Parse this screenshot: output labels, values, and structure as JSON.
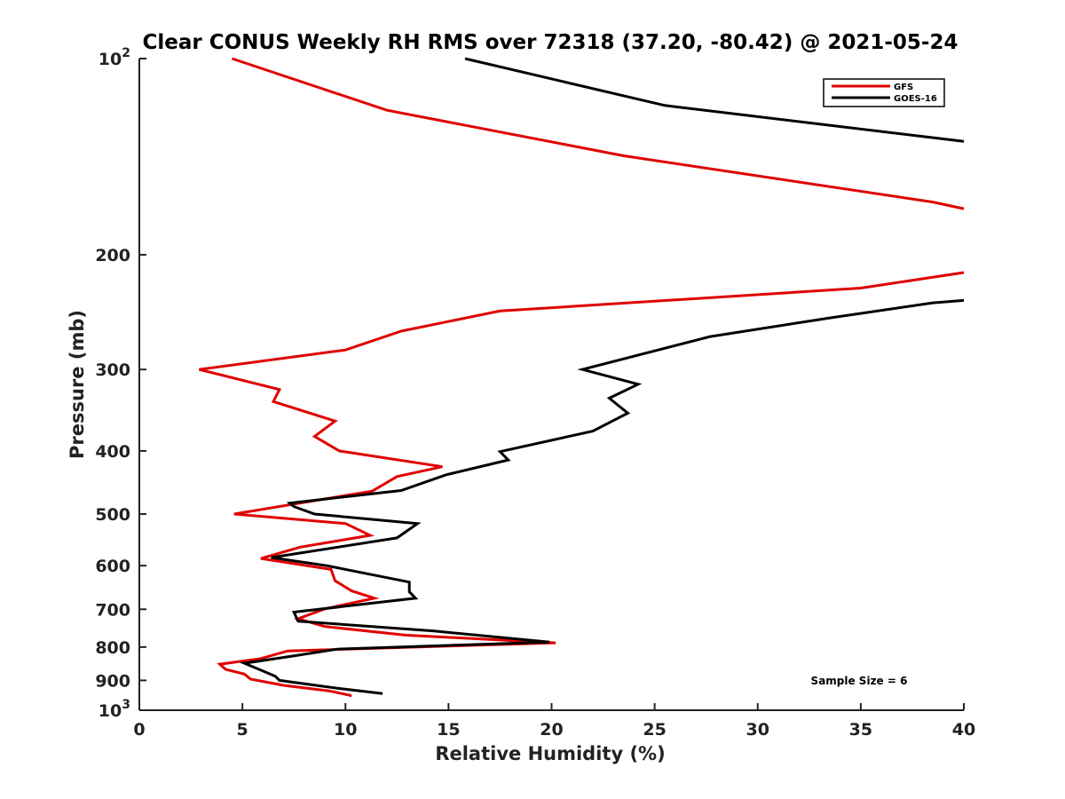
{
  "chart_data": {
    "type": "line",
    "title": "Clear CONUS Weekly RH RMS over 72318 (37.20, -80.42) @ 2021-05-24",
    "xlabel": "Relative Humidity (%)",
    "ylabel": "Pressure (mb)",
    "xlim": [
      0,
      40
    ],
    "ylim": [
      100,
      1000
    ],
    "yscale": "log",
    "y_reversed": true,
    "x_ticks": [
      "0",
      "5",
      "10",
      "15",
      "20",
      "25",
      "30",
      "35",
      "40"
    ],
    "y_ticks": [
      {
        "value": 100,
        "label": "10",
        "sup": "2"
      },
      {
        "value": 200,
        "label": "200"
      },
      {
        "value": 300,
        "label": "300"
      },
      {
        "value": 400,
        "label": "400"
      },
      {
        "value": 500,
        "label": "500"
      },
      {
        "value": 600,
        "label": "600"
      },
      {
        "value": 700,
        "label": "700"
      },
      {
        "value": 800,
        "label": "800"
      },
      {
        "value": 900,
        "label": "900"
      },
      {
        "value": 1000,
        "label": "10",
        "sup": "3"
      }
    ],
    "grid": false,
    "legend_position": "top-right",
    "annotation": "Sample Size = 6",
    "series": [
      {
        "name": "GFS",
        "color": "#e00000",
        "points": [
          [
            4.5,
            100
          ],
          [
            12,
            120
          ],
          [
            23.5,
            141
          ],
          [
            38.5,
            166
          ],
          [
            40,
            170
          ],
          [
            null,
            null
          ],
          [
            40,
            213
          ],
          [
            35,
            225
          ],
          [
            17.5,
            244
          ],
          [
            12.7,
            262
          ],
          [
            10,
            280
          ],
          [
            2.9,
            300
          ],
          [
            6.8,
            322
          ],
          [
            6.5,
            336
          ],
          [
            9.5,
            360
          ],
          [
            8.5,
            380
          ],
          [
            9.7,
            400
          ],
          [
            14.7,
            423
          ],
          [
            12.5,
            438
          ],
          [
            11.3,
            461
          ],
          [
            4.6,
            500
          ],
          [
            10,
            517
          ],
          [
            11.2,
            539
          ],
          [
            7.8,
            562
          ],
          [
            5.9,
            585
          ],
          [
            9.3,
            608
          ],
          [
            9.5,
            633
          ],
          [
            10.3,
            656
          ],
          [
            11.4,
            673
          ],
          [
            9.0,
            699
          ],
          [
            7.7,
            724
          ],
          [
            9.0,
            744
          ],
          [
            12.9,
            767
          ],
          [
            20.2,
            788
          ],
          [
            7.2,
            811
          ],
          [
            5.9,
            833
          ],
          [
            3.9,
            850
          ],
          [
            4.2,
            866
          ],
          [
            5.1,
            880
          ],
          [
            5.4,
            896
          ],
          [
            7.0,
            916
          ],
          [
            9.2,
            934
          ],
          [
            10.3,
            950
          ]
        ]
      },
      {
        "name": "GOES-16",
        "color": "#000000",
        "points": [
          [
            15.8,
            100
          ],
          [
            25.5,
            118
          ],
          [
            40,
            134
          ],
          [
            null,
            null
          ],
          [
            40,
            235
          ],
          [
            38.5,
            237
          ],
          [
            33.5,
            250
          ],
          [
            27.7,
            267
          ],
          [
            21.5,
            300
          ],
          [
            24.2,
            316
          ],
          [
            22.8,
            332
          ],
          [
            23.7,
            350
          ],
          [
            22.0,
            373
          ],
          [
            17.5,
            401
          ],
          [
            17.9,
            413
          ],
          [
            14.9,
            435
          ],
          [
            12.7,
            460
          ],
          [
            7.3,
            481
          ],
          [
            7.5,
            487
          ],
          [
            8.5,
            500
          ],
          [
            13.5,
            517
          ],
          [
            12.5,
            544
          ],
          [
            9.8,
            561
          ],
          [
            6.4,
            583
          ],
          [
            9.1,
            600
          ],
          [
            13.1,
            636
          ],
          [
            13.1,
            658
          ],
          [
            13.4,
            673
          ],
          [
            7.5,
            707
          ],
          [
            7.7,
            730
          ],
          [
            14.3,
            756
          ],
          [
            19.9,
            786
          ],
          [
            9.6,
            806
          ],
          [
            7.4,
            826
          ],
          [
            5.1,
            847
          ],
          [
            5.9,
            868
          ],
          [
            6.6,
            887
          ],
          [
            6.8,
            900
          ],
          [
            9.7,
            926
          ],
          [
            11.8,
            943
          ]
        ]
      }
    ]
  }
}
